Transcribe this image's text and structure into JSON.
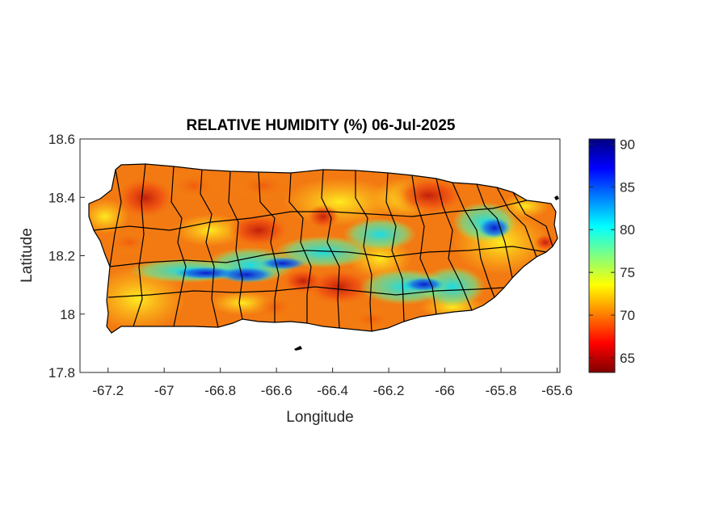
{
  "map": {
    "title": "RELATIVE HUMIDITY (%) 06-Jul-2025",
    "xlabel": "Longitude",
    "ylabel": "Latitude",
    "xlim": [
      -67.3,
      -65.59
    ],
    "ylim": [
      17.8,
      18.6
    ],
    "x_ticks": [
      "-67.2",
      "-67",
      "-66.8",
      "-66.6",
      "-66.4",
      "-66.2",
      "-66",
      "-65.8",
      "-65.6"
    ],
    "x_tick_values": [
      -67.2,
      -67.0,
      -66.8,
      -66.6,
      -66.4,
      -66.2,
      -66.0,
      -65.8,
      -65.6
    ],
    "y_ticks": [
      "18.6",
      "18.4",
      "18.2",
      "18",
      "17.8"
    ],
    "y_tick_values": [
      18.6,
      18.4,
      18.2,
      18.0,
      17.8
    ],
    "region": "Puerto Rico",
    "colormap": "jet",
    "colors": {
      "dry": "#c81e0a",
      "mid": "#ffe21a",
      "humid": "#0a2ed8",
      "border": "#000000"
    }
  },
  "colorbar": {
    "range": [
      63.3,
      90.6
    ],
    "ticks": [
      "90",
      "85",
      "80",
      "75",
      "70",
      "65"
    ],
    "tick_values": [
      90,
      85,
      80,
      75,
      70,
      65
    ]
  }
}
